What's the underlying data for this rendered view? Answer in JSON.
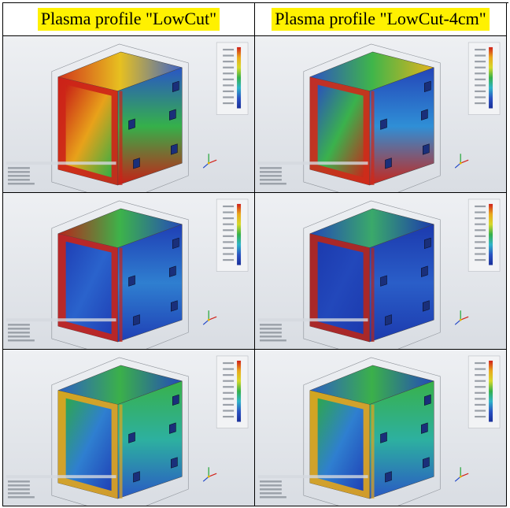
{
  "columns": [
    {
      "label": "Plasma profile \"LowCut\""
    },
    {
      "label": "Plasma profile \"LowCut-4cm\""
    }
  ],
  "colors": {
    "header_highlight": "#fff100",
    "field_low": "#1f3fb5",
    "field_mid": "#2fb34a",
    "field_high": "#d8261c"
  },
  "panels": [
    {
      "scheme": "hot"
    },
    {
      "scheme": "warm"
    },
    {
      "scheme": "cool"
    },
    {
      "scheme": "cold"
    },
    {
      "scheme": "green"
    },
    {
      "scheme": "green"
    }
  ]
}
